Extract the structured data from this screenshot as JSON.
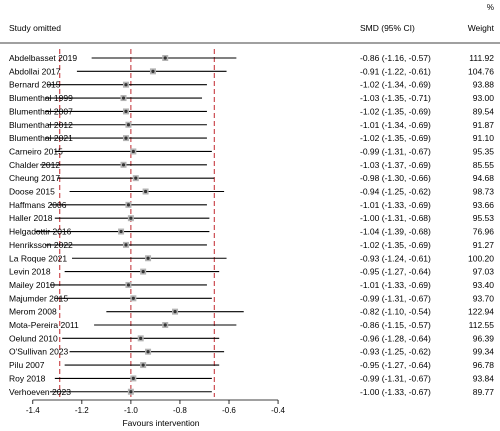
{
  "chart_data": {
    "type": "forest",
    "header": {
      "study_col": "Study omitted",
      "ci_col": "SMD (95% CI)",
      "weight_col_top": "%",
      "weight_col": "Weight"
    },
    "xlabel": "Favours intervention",
    "xlim": [
      -1.45,
      -0.38
    ],
    "xticks": [
      "-1.4",
      "-1.2",
      "-1.0",
      "-0.8",
      "-0.6",
      "-0.4"
    ],
    "reference_lines": {
      "overall": -1.0,
      "ci_lower": -1.29,
      "ci_upper": -0.66
    },
    "rows": [
      {
        "study": "Abdelbasset 2019",
        "est": -0.86,
        "lo": -1.16,
        "hi": -0.57,
        "ci_text": "-0.86 (-1.16, -0.57)",
        "weight": "111.92"
      },
      {
        "study": "Abdollai 2017",
        "est": -0.91,
        "lo": -1.22,
        "hi": -0.61,
        "ci_text": "-0.91 (-1.22, -0.61)",
        "weight": "104.76"
      },
      {
        "study": "Bernard 2015",
        "est": -1.02,
        "lo": -1.34,
        "hi": -0.69,
        "ci_text": "-1.02 (-1.34, -0.69)",
        "weight": "93.88"
      },
      {
        "study": "Blumenthal 1999",
        "est": -1.03,
        "lo": -1.35,
        "hi": -0.71,
        "ci_text": "-1.03 (-1.35, -0.71)",
        "weight": "93.00"
      },
      {
        "study": "Blumenthal 2007",
        "est": -1.02,
        "lo": -1.35,
        "hi": -0.69,
        "ci_text": "-1.02 (-1.35, -0.69)",
        "weight": "89.54"
      },
      {
        "study": "Blumenthal 2012",
        "est": -1.01,
        "lo": -1.34,
        "hi": -0.69,
        "ci_text": "-1.01 (-1.34, -0.69)",
        "weight": "91.87"
      },
      {
        "study": "Blumenthal 2021",
        "est": -1.02,
        "lo": -1.35,
        "hi": -0.69,
        "ci_text": "-1.02 (-1.35, -0.69)",
        "weight": "91.10"
      },
      {
        "study": "Carneiro 2015",
        "est": -0.99,
        "lo": -1.31,
        "hi": -0.67,
        "ci_text": "-0.99 (-1.31, -0.67)",
        "weight": "95.35"
      },
      {
        "study": "Chalder 2012",
        "est": -1.03,
        "lo": -1.37,
        "hi": -0.69,
        "ci_text": "-1.03 (-1.37, -0.69)",
        "weight": "85.55"
      },
      {
        "study": "Cheung 2017",
        "est": -0.98,
        "lo": -1.3,
        "hi": -0.66,
        "ci_text": "-0.98 (-1.30, -0.66)",
        "weight": "94.68"
      },
      {
        "study": "Doose 2015",
        "est": -0.94,
        "lo": -1.25,
        "hi": -0.62,
        "ci_text": "-0.94 (-1.25, -0.62)",
        "weight": "98.73"
      },
      {
        "study": "Haffmans 2006",
        "est": -1.01,
        "lo": -1.33,
        "hi": -0.69,
        "ci_text": "-1.01 (-1.33, -0.69)",
        "weight": "93.66"
      },
      {
        "study": "Haller 2018",
        "est": -1.0,
        "lo": -1.31,
        "hi": -0.68,
        "ci_text": "-1.00 (-1.31, -0.68)",
        "weight": "95.53"
      },
      {
        "study": "Helgadottir 2016",
        "est": -1.04,
        "lo": -1.39,
        "hi": -0.68,
        "ci_text": "-1.04 (-1.39, -0.68)",
        "weight": "76.96"
      },
      {
        "study": "Henriksson 2022",
        "est": -1.02,
        "lo": -1.35,
        "hi": -0.69,
        "ci_text": "-1.02 (-1.35, -0.69)",
        "weight": "91.27"
      },
      {
        "study": "La Roque 2021",
        "est": -0.93,
        "lo": -1.24,
        "hi": -0.61,
        "ci_text": "-0.93 (-1.24, -0.61)",
        "weight": "100.20"
      },
      {
        "study": "Levin 2018",
        "est": -0.95,
        "lo": -1.27,
        "hi": -0.64,
        "ci_text": "-0.95 (-1.27, -0.64)",
        "weight": "97.03"
      },
      {
        "study": "Mailey 2010",
        "est": -1.01,
        "lo": -1.33,
        "hi": -0.69,
        "ci_text": "-1.01 (-1.33, -0.69)",
        "weight": "93.40"
      },
      {
        "study": "Majumder 2015",
        "est": -0.99,
        "lo": -1.31,
        "hi": -0.67,
        "ci_text": "-0.99 (-1.31, -0.67)",
        "weight": "93.70"
      },
      {
        "study": "Merom 2008",
        "est": -0.82,
        "lo": -1.1,
        "hi": -0.54,
        "ci_text": "-0.82 (-1.10, -0.54)",
        "weight": "122.94"
      },
      {
        "study": "Mota-Pereira 2011",
        "est": -0.86,
        "lo": -1.15,
        "hi": -0.57,
        "ci_text": "-0.86 (-1.15, -0.57)",
        "weight": "112.55"
      },
      {
        "study": "Oelund 2010",
        "est": -0.96,
        "lo": -1.28,
        "hi": -0.64,
        "ci_text": "-0.96 (-1.28, -0.64)",
        "weight": "96.39"
      },
      {
        "study": "O'Sullivan 2023",
        "est": -0.93,
        "lo": -1.25,
        "hi": -0.62,
        "ci_text": "-0.93 (-1.25, -0.62)",
        "weight": "99.34"
      },
      {
        "study": "Pilu 2007",
        "est": -0.95,
        "lo": -1.27,
        "hi": -0.64,
        "ci_text": "-0.95 (-1.27, -0.64)",
        "weight": "96.78"
      },
      {
        "study": "Roy 2018",
        "est": -0.99,
        "lo": -1.31,
        "hi": -0.67,
        "ci_text": "-0.99 (-1.31, -0.67)",
        "weight": "93.84"
      },
      {
        "study": "Verhoeven 2023",
        "est": -1.0,
        "lo": -1.33,
        "hi": -0.67,
        "ci_text": "-1.00 (-1.33, -0.67)",
        "weight": "89.77"
      }
    ],
    "colors": {
      "line": "#000000",
      "marker_box": "#b3b3b3",
      "dot": "#333333",
      "reference": "#c0272d"
    }
  }
}
